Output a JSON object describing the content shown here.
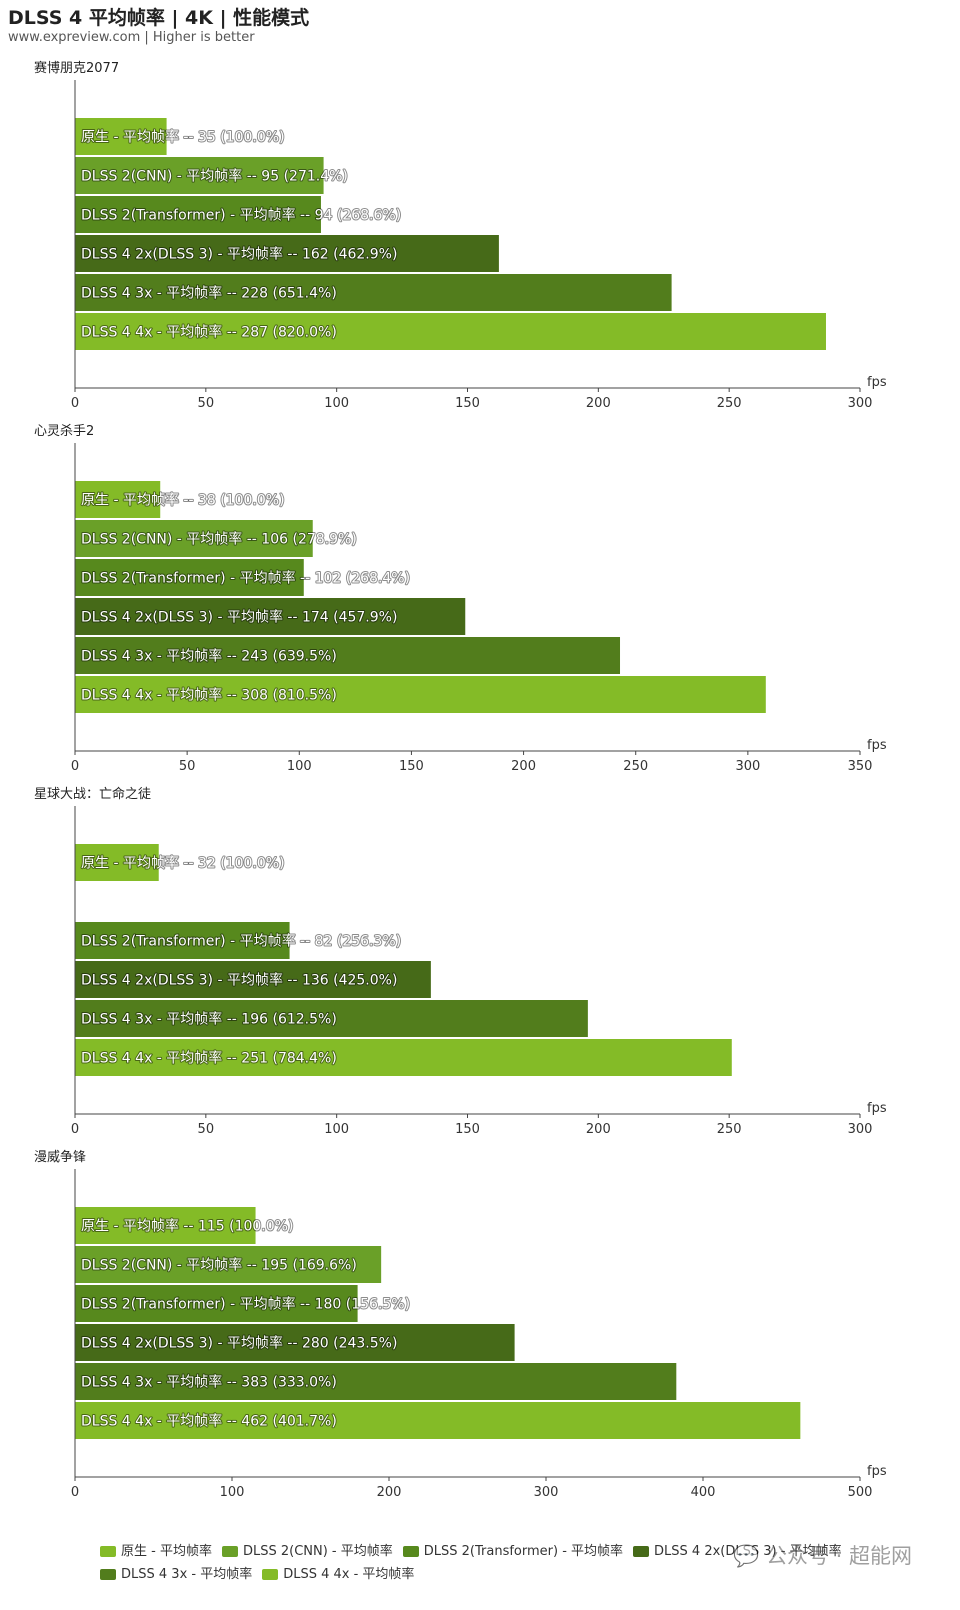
{
  "header": {
    "title": "DLSS 4 平均帧率 | 4K | 性能模式",
    "subtitle": "www.expreview.com | Higher is better"
  },
  "colors": {
    "native": "#84bb27",
    "dlss2_cnn": "#6aa028",
    "dlss2_transformer": "#57891d",
    "dlss4_2x": "#466a18",
    "dlss4_3x": "#527d1c",
    "dlss4_4x": "#84bb27"
  },
  "chart_data": [
    {
      "type": "bar",
      "orientation": "horizontal",
      "title": "赛博朋克2077",
      "unit": "fps",
      "xlim": [
        0,
        300
      ],
      "ticks": [
        0,
        50,
        100,
        150,
        200,
        250,
        300
      ],
      "bars": [
        {
          "label": "原生 - 平均帧率  --  35 (100.0%)",
          "value": 35,
          "series": "native"
        },
        {
          "label": "DLSS 2(CNN)  - 平均帧率  --  95 (271.4%)",
          "value": 95,
          "series": "dlss2_cnn"
        },
        {
          "label": "DLSS 2(Transformer) - 平均帧率  --  94 (268.6%)",
          "value": 94,
          "series": "dlss2_transformer"
        },
        {
          "label": "DLSS 4 2x(DLSS 3)  - 平均帧率  --  162 (462.9%)",
          "value": 162,
          "series": "dlss4_2x"
        },
        {
          "label": "DLSS 4 3x  - 平均帧率  --  228 (651.4%)",
          "value": 228,
          "series": "dlss4_3x"
        },
        {
          "label": "DLSS 4 4x  - 平均帧率  --  287 (820.0%)",
          "value": 287,
          "series": "dlss4_4x"
        }
      ]
    },
    {
      "type": "bar",
      "orientation": "horizontal",
      "title": "心灵杀手2",
      "unit": "fps",
      "xlim": [
        0,
        350
      ],
      "ticks": [
        0,
        50,
        100,
        150,
        200,
        250,
        300,
        350
      ],
      "bars": [
        {
          "label": "原生 - 平均帧率  --  38 (100.0%)",
          "value": 38,
          "series": "native"
        },
        {
          "label": "DLSS 2(CNN)  - 平均帧率  --  106 (278.9%)",
          "value": 106,
          "series": "dlss2_cnn"
        },
        {
          "label": "DLSS 2(Transformer) - 平均帧率  --  102 (268.4%)",
          "value": 102,
          "series": "dlss2_transformer"
        },
        {
          "label": "DLSS 4 2x(DLSS 3)  - 平均帧率  --  174 (457.9%)",
          "value": 174,
          "series": "dlss4_2x"
        },
        {
          "label": "DLSS 4 3x  - 平均帧率  --  243 (639.5%)",
          "value": 243,
          "series": "dlss4_3x"
        },
        {
          "label": "DLSS 4 4x  - 平均帧率  --  308 (810.5%)",
          "value": 308,
          "series": "dlss4_4x"
        }
      ]
    },
    {
      "type": "bar",
      "orientation": "horizontal",
      "title": "星球大战：亡命之徒",
      "unit": "fps",
      "xlim": [
        0,
        300
      ],
      "ticks": [
        0,
        50,
        100,
        150,
        200,
        250,
        300
      ],
      "bars": [
        {
          "label": "原生 - 平均帧率  --  32 (100.0%)",
          "value": 32,
          "series": "native"
        },
        {
          "label": "",
          "value": null,
          "series": "dlss2_cnn"
        },
        {
          "label": "DLSS 2(Transformer) - 平均帧率  --  82 (256.3%)",
          "value": 82,
          "series": "dlss2_transformer"
        },
        {
          "label": "DLSS 4 2x(DLSS 3)  - 平均帧率  --  136 (425.0%)",
          "value": 136,
          "series": "dlss4_2x"
        },
        {
          "label": "DLSS 4 3x  - 平均帧率  --  196 (612.5%)",
          "value": 196,
          "series": "dlss4_3x"
        },
        {
          "label": "DLSS 4 4x  - 平均帧率  --  251 (784.4%)",
          "value": 251,
          "series": "dlss4_4x"
        }
      ]
    },
    {
      "type": "bar",
      "orientation": "horizontal",
      "title": "漫威争锋",
      "unit": "fps",
      "xlim": [
        0,
        500
      ],
      "ticks": [
        0,
        100,
        200,
        300,
        400,
        500
      ],
      "bars": [
        {
          "label": "原生 - 平均帧率  --  115 (100.0%)",
          "value": 115,
          "series": "native"
        },
        {
          "label": "DLSS 2(CNN)  - 平均帧率  --  195 (169.6%)",
          "value": 195,
          "series": "dlss2_cnn"
        },
        {
          "label": "DLSS 2(Transformer) - 平均帧率  --  180 (156.5%)",
          "value": 180,
          "series": "dlss2_transformer"
        },
        {
          "label": "DLSS 4 2x(DLSS 3)  - 平均帧率  --  280 (243.5%)",
          "value": 280,
          "series": "dlss4_2x"
        },
        {
          "label": "DLSS 4 3x  - 平均帧率  --  383 (333.0%)",
          "value": 383,
          "series": "dlss4_3x"
        },
        {
          "label": "DLSS 4 4x  - 平均帧率  --  462 (401.7%)",
          "value": 462,
          "series": "dlss4_4x"
        }
      ]
    }
  ],
  "legend": [
    {
      "label": "原生 - 平均帧率",
      "series": "native"
    },
    {
      "label": "DLSS 2(CNN)  - 平均帧率",
      "series": "dlss2_cnn"
    },
    {
      "label": "DLSS 2(Transformer) - 平均帧率",
      "series": "dlss2_transformer"
    },
    {
      "label": "DLSS 4 2x(DLSS 3)  - 平均帧率",
      "series": "dlss4_2x"
    },
    {
      "label": "DLSS 4 3x  - 平均帧率",
      "series": "dlss4_3x"
    },
    {
      "label": "DLSS 4 4x  - 平均帧率",
      "series": "dlss4_4x"
    }
  ],
  "watermark": "公众号 · 超能网"
}
